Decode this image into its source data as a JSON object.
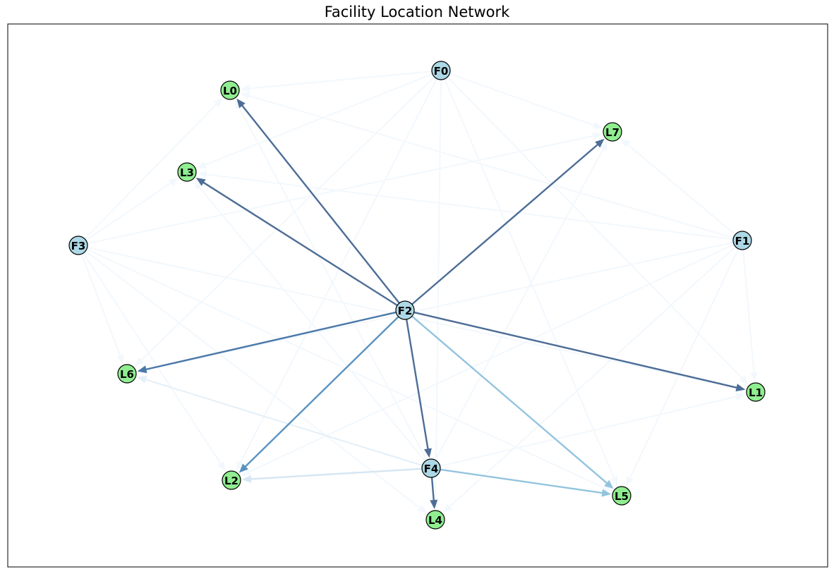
{
  "title": "Facility Location Network",
  "colors": {
    "facility": "#add8e6",
    "location": "#90ee90",
    "node_edge": "#000000",
    "frame": "#000000"
  },
  "nodes": [
    {
      "id": "F0",
      "type": "facility"
    },
    {
      "id": "F1",
      "type": "facility"
    },
    {
      "id": "F2",
      "type": "facility"
    },
    {
      "id": "F3",
      "type": "facility"
    },
    {
      "id": "F4",
      "type": "facility"
    },
    {
      "id": "L0",
      "type": "location"
    },
    {
      "id": "L1",
      "type": "location"
    },
    {
      "id": "L2",
      "type": "location"
    },
    {
      "id": "L3",
      "type": "location"
    },
    {
      "id": "L4",
      "type": "location"
    },
    {
      "id": "L5",
      "type": "location"
    },
    {
      "id": "L6",
      "type": "location"
    },
    {
      "id": "L7",
      "type": "location"
    }
  ],
  "edges": [
    {
      "from": "F2",
      "to": "L0",
      "color": "#4d6d96"
    },
    {
      "from": "F2",
      "to": "L3",
      "color": "#4d6d96"
    },
    {
      "from": "F2",
      "to": "L7",
      "color": "#4d6d96"
    },
    {
      "from": "F2",
      "to": "L1",
      "color": "#4d6d96"
    },
    {
      "from": "F2",
      "to": "L6",
      "color": "#4a78a8"
    },
    {
      "from": "F2",
      "to": "L2",
      "color": "#5a92c0"
    },
    {
      "from": "F2",
      "to": "F4",
      "color": "#4d6d96"
    },
    {
      "from": "F2",
      "to": "L5",
      "color": "#93c4de"
    },
    {
      "from": "F4",
      "to": "L5",
      "color": "#93c4de"
    },
    {
      "from": "F4",
      "to": "L2",
      "color": "#d6e6f3"
    },
    {
      "from": "F4",
      "to": "L6",
      "color": "#e4eff8"
    },
    {
      "from": "F4",
      "to": "L4",
      "color": "#4d6d96"
    },
    {
      "from": "F0",
      "to": "L0",
      "color": "#f2f8fd"
    },
    {
      "from": "F0",
      "to": "L3",
      "color": "#f2f8fd"
    },
    {
      "from": "F0",
      "to": "L7",
      "color": "#f2f8fd"
    },
    {
      "from": "F0",
      "to": "L6",
      "color": "#f2f8fd"
    },
    {
      "from": "F0",
      "to": "L2",
      "color": "#f2f8fd"
    },
    {
      "from": "F0",
      "to": "L4",
      "color": "#f2f8fd"
    },
    {
      "from": "F0",
      "to": "L5",
      "color": "#f2f8fd"
    },
    {
      "from": "F0",
      "to": "L1",
      "color": "#f2f8fd"
    },
    {
      "from": "F1",
      "to": "L0",
      "color": "#f2f8fd"
    },
    {
      "from": "F1",
      "to": "L3",
      "color": "#f2f8fd"
    },
    {
      "from": "F1",
      "to": "L7",
      "color": "#f2f8fd"
    },
    {
      "from": "F1",
      "to": "L6",
      "color": "#f2f8fd"
    },
    {
      "from": "F1",
      "to": "L2",
      "color": "#f2f8fd"
    },
    {
      "from": "F1",
      "to": "L4",
      "color": "#f2f8fd"
    },
    {
      "from": "F1",
      "to": "L5",
      "color": "#f2f8fd"
    },
    {
      "from": "F1",
      "to": "L1",
      "color": "#f2f8fd"
    },
    {
      "from": "F3",
      "to": "L0",
      "color": "#f2f8fd"
    },
    {
      "from": "F3",
      "to": "L3",
      "color": "#f2f8fd"
    },
    {
      "from": "F3",
      "to": "L7",
      "color": "#f2f8fd"
    },
    {
      "from": "F3",
      "to": "L6",
      "color": "#f2f8fd"
    },
    {
      "from": "F3",
      "to": "L2",
      "color": "#f2f8fd"
    },
    {
      "from": "F3",
      "to": "L4",
      "color": "#f2f8fd"
    },
    {
      "from": "F3",
      "to": "L5",
      "color": "#f2f8fd"
    },
    {
      "from": "F3",
      "to": "L1",
      "color": "#f2f8fd"
    },
    {
      "from": "F4",
      "to": "L0",
      "color": "#f2f8fd"
    },
    {
      "from": "F4",
      "to": "L3",
      "color": "#f2f8fd"
    },
    {
      "from": "F4",
      "to": "L7",
      "color": "#f2f8fd"
    },
    {
      "from": "F4",
      "to": "L1",
      "color": "#f2f8fd"
    }
  ]
}
